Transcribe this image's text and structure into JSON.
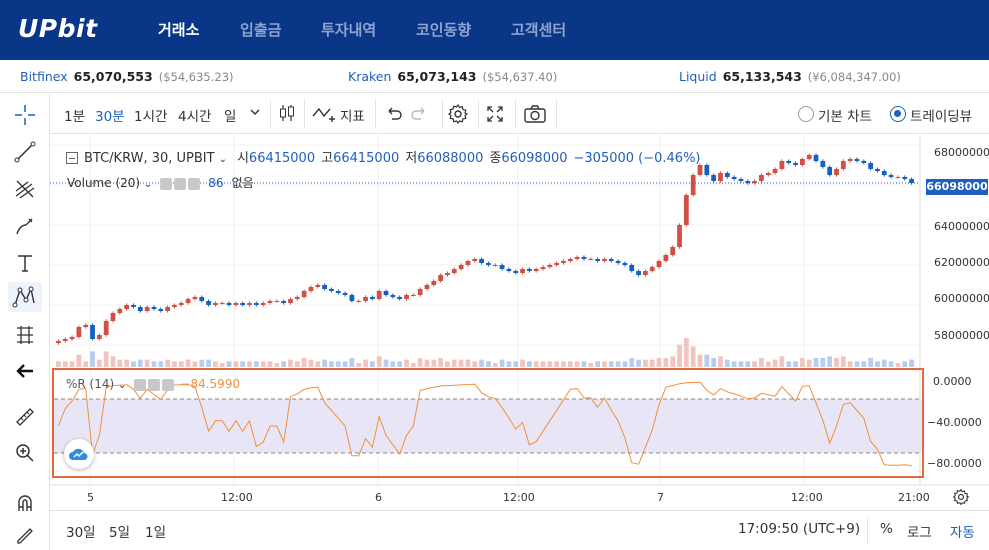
{
  "header": {
    "logo": "UPbit",
    "nav": [
      "거래소",
      "입출금",
      "투자내역",
      "코인동향",
      "고객센터"
    ],
    "active_nav": 0
  },
  "ticker": [
    {
      "name": "Bitfinex",
      "price": "65,070,553",
      "sub": "($54,635.23)"
    },
    {
      "name": "Kraken",
      "price": "65,073,143",
      "sub": "($54,637.40)"
    },
    {
      "name": "Liquid",
      "price": "65,133,543",
      "sub": "(¥6,084,347.00)"
    }
  ],
  "toolbar": {
    "intervals": [
      "1분",
      "30분",
      "1시간",
      "4시간",
      "일"
    ],
    "active_interval": "30분",
    "indicator_label": "지표",
    "chart_type_basic": "기본 차트",
    "chart_type_tv": "트레이딩뷰"
  },
  "legend": {
    "symbol": "BTC/KRW, 30, UPBIT",
    "open_k": "시",
    "open_v": "66415000",
    "high_k": "고",
    "high_v": "66415000",
    "low_k": "저",
    "low_v": "66088000",
    "close_k": "종",
    "close_v": "66098000",
    "change": "−305000 (−0.46%)",
    "volume_label": "Volume (20)",
    "volume_value": "86",
    "volume_extra": "없음"
  },
  "indicator": {
    "label": "%R (14)",
    "value": "−84.5990"
  },
  "price_axis": [
    "68000000",
    "66000000",
    "64000000",
    "62000000",
    "60000000",
    "58000000"
  ],
  "current_price": "66098000",
  "osc_axis": [
    "0.0000",
    "−40.0000",
    "−80.0000"
  ],
  "time_axis": [
    "5",
    "12:00",
    "6",
    "12:00",
    "7",
    "12:00",
    "21:00"
  ],
  "bottom": {
    "ranges": [
      "30일",
      "5일",
      "1일"
    ],
    "clock": "17:09:50 (UTC+9)",
    "pct": "%",
    "log": "로그",
    "auto": "자동"
  },
  "colors": {
    "brand": "#093687",
    "up": "#d24f45",
    "down": "#1261c4",
    "accent": "#1f5fbf",
    "indicator": "#f0913c"
  },
  "chart_data": {
    "type": "candlestick",
    "symbol": "BTC/KRW",
    "interval": "30",
    "ylim": [
      57000000,
      68500000
    ],
    "close": [
      58200000,
      58300000,
      58400000,
      58900000,
      59000000,
      58300000,
      58500000,
      59200000,
      59600000,
      59800000,
      60000000,
      59900000,
      59700000,
      59900000,
      59800000,
      59700000,
      59900000,
      60000000,
      60100000,
      60300000,
      60400000,
      60200000,
      60000000,
      60100000,
      60100000,
      60000000,
      60100000,
      60000000,
      60100000,
      60000000,
      60100000,
      60200000,
      60200000,
      60100000,
      60300000,
      60400000,
      60700000,
      60900000,
      61000000,
      60800000,
      60700000,
      60600000,
      60500000,
      60200000,
      60200000,
      60400000,
      60300000,
      60700000,
      60500000,
      60400000,
      60300000,
      60500000,
      60500000,
      60800000,
      61000000,
      61200000,
      61500000,
      61600000,
      61800000,
      62000000,
      62200000,
      62300000,
      62100000,
      62000000,
      62000000,
      61800000,
      61700000,
      61600000,
      61800000,
      61700000,
      61800000,
      61900000,
      62000000,
      62100000,
      62200000,
      62300000,
      62400000,
      62300000,
      62300000,
      62200000,
      62300000,
      62200000,
      62100000,
      62000000,
      61700000,
      61500000,
      61700000,
      61900000,
      62200000,
      62500000,
      62900000,
      64000000,
      65500000,
      66500000,
      67000000,
      66500000,
      66200000,
      66600000,
      66400000,
      66300000,
      66200000,
      66100000,
      66200000,
      66500000,
      66600000,
      66800000,
      67200000,
      67100000,
      67000000,
      67300000,
      67500000,
      67200000,
      66900000,
      66500000,
      66800000,
      67200000,
      67300000,
      67200000,
      67100000,
      66800000,
      66700000,
      66500000,
      66400000,
      66400000,
      66300000,
      66098000
    ]
  }
}
